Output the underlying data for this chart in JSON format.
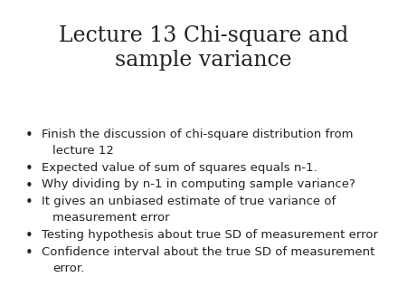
{
  "title": "Lecture 13 Chi-square and\nsample variance",
  "title_fontsize": 17,
  "title_color": "#222222",
  "background_color": "#ffffff",
  "bullet_color": "#222222",
  "bullet_fontsize": 9.5,
  "bullets": [
    [
      "Finish the discussion of chi-square distribution from",
      "lecture 12"
    ],
    [
      "Expected value of sum of squares equals n-1."
    ],
    [
      "Why dividing by n-1 in computing sample variance?"
    ],
    [
      "It gives an unbiased estimate of true variance of",
      "measurement error"
    ],
    [
      "Testing hypothesis about true SD of measurement error"
    ],
    [
      "Confidence interval about the true SD of measurement",
      "error."
    ]
  ]
}
